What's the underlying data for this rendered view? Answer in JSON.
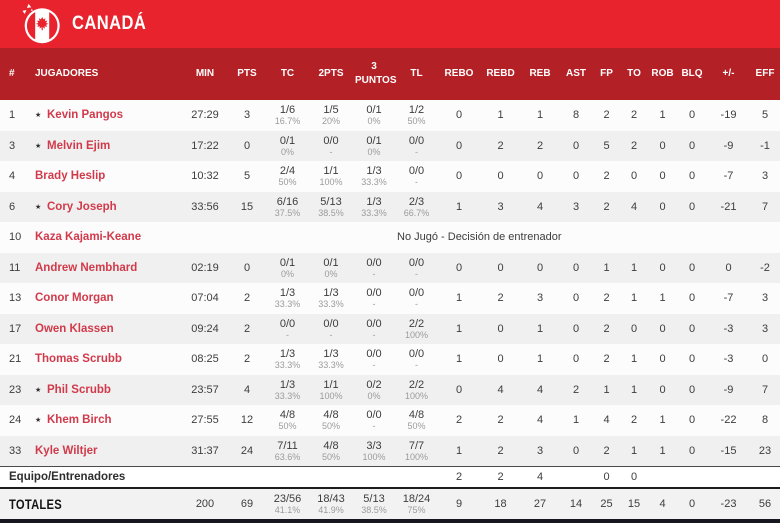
{
  "team": {
    "name": "CANADÁ"
  },
  "colors": {
    "topbar": "#e8232d",
    "header_bg": "#b32025",
    "name_red": "#d13a4a",
    "stripe": "#f0f0f1",
    "footer_dark": "#16161f"
  },
  "columns": [
    "#",
    "JUGADORES",
    "MIN",
    "PTS",
    "TC",
    "2PTS",
    "3 PUNTOS",
    "TL",
    "REBO",
    "REBD",
    "REB",
    "AST",
    "FP",
    "TO",
    "ROB",
    "BLQ",
    "+/-",
    "EFF"
  ],
  "players": [
    {
      "num": "1",
      "starter": true,
      "name": "Kevin Pangos",
      "min": "27:29",
      "pts": "3",
      "tc": {
        "m": "1/6",
        "pct": "16.7%"
      },
      "p2": {
        "m": "1/5",
        "pct": "20%"
      },
      "p3": {
        "m": "0/1",
        "pct": "0%"
      },
      "tl": {
        "m": "1/2",
        "pct": "50%"
      },
      "rebo": "0",
      "rebd": "1",
      "reb": "1",
      "ast": "8",
      "fp": "2",
      "to": "2",
      "rob": "1",
      "blq": "0",
      "pm": "-19",
      "eff": "5"
    },
    {
      "num": "3",
      "starter": true,
      "name": "Melvin Ejim",
      "min": "17:22",
      "pts": "0",
      "tc": {
        "m": "0/1",
        "pct": "0%"
      },
      "p2": {
        "m": "0/0",
        "pct": "-"
      },
      "p3": {
        "m": "0/1",
        "pct": "0%"
      },
      "tl": {
        "m": "0/0",
        "pct": "-"
      },
      "rebo": "0",
      "rebd": "2",
      "reb": "2",
      "ast": "0",
      "fp": "5",
      "to": "2",
      "rob": "0",
      "blq": "0",
      "pm": "-9",
      "eff": "-1"
    },
    {
      "num": "4",
      "starter": false,
      "name": "Brady Heslip",
      "min": "10:32",
      "pts": "5",
      "tc": {
        "m": "2/4",
        "pct": "50%"
      },
      "p2": {
        "m": "1/1",
        "pct": "100%"
      },
      "p3": {
        "m": "1/3",
        "pct": "33.3%"
      },
      "tl": {
        "m": "0/0",
        "pct": "-"
      },
      "rebo": "0",
      "rebd": "0",
      "reb": "0",
      "ast": "0",
      "fp": "2",
      "to": "0",
      "rob": "0",
      "blq": "0",
      "pm": "-7",
      "eff": "3"
    },
    {
      "num": "6",
      "starter": true,
      "name": "Cory Joseph",
      "min": "33:56",
      "pts": "15",
      "tc": {
        "m": "6/16",
        "pct": "37.5%"
      },
      "p2": {
        "m": "5/13",
        "pct": "38.5%"
      },
      "p3": {
        "m": "1/3",
        "pct": "33.3%"
      },
      "tl": {
        "m": "2/3",
        "pct": "66.7%"
      },
      "rebo": "1",
      "rebd": "3",
      "reb": "4",
      "ast": "3",
      "fp": "2",
      "to": "4",
      "rob": "0",
      "blq": "0",
      "pm": "-21",
      "eff": "7"
    },
    {
      "num": "10",
      "starter": false,
      "name": "Kaza Kajami-Keane",
      "dnp": "No Jugó - Decisión de entrenador"
    },
    {
      "num": "11",
      "starter": false,
      "name": "Andrew Nembhard",
      "min": "02:19",
      "pts": "0",
      "tc": {
        "m": "0/1",
        "pct": "0%"
      },
      "p2": {
        "m": "0/1",
        "pct": "0%"
      },
      "p3": {
        "m": "0/0",
        "pct": "-"
      },
      "tl": {
        "m": "0/0",
        "pct": "-"
      },
      "rebo": "0",
      "rebd": "0",
      "reb": "0",
      "ast": "0",
      "fp": "1",
      "to": "1",
      "rob": "0",
      "blq": "0",
      "pm": "0",
      "eff": "-2"
    },
    {
      "num": "13",
      "starter": false,
      "name": "Conor Morgan",
      "min": "07:04",
      "pts": "2",
      "tc": {
        "m": "1/3",
        "pct": "33.3%"
      },
      "p2": {
        "m": "1/3",
        "pct": "33.3%"
      },
      "p3": {
        "m": "0/0",
        "pct": "-"
      },
      "tl": {
        "m": "0/0",
        "pct": "-"
      },
      "rebo": "1",
      "rebd": "2",
      "reb": "3",
      "ast": "0",
      "fp": "2",
      "to": "1",
      "rob": "1",
      "blq": "0",
      "pm": "-7",
      "eff": "3"
    },
    {
      "num": "17",
      "starter": false,
      "name": "Owen Klassen",
      "min": "09:24",
      "pts": "2",
      "tc": {
        "m": "0/0",
        "pct": "-"
      },
      "p2": {
        "m": "0/0",
        "pct": "-"
      },
      "p3": {
        "m": "0/0",
        "pct": "-"
      },
      "tl": {
        "m": "2/2",
        "pct": "100%"
      },
      "rebo": "1",
      "rebd": "0",
      "reb": "1",
      "ast": "0",
      "fp": "2",
      "to": "0",
      "rob": "0",
      "blq": "0",
      "pm": "-3",
      "eff": "3"
    },
    {
      "num": "21",
      "starter": false,
      "name": "Thomas Scrubb",
      "min": "08:25",
      "pts": "2",
      "tc": {
        "m": "1/3",
        "pct": "33.3%"
      },
      "p2": {
        "m": "1/3",
        "pct": "33.3%"
      },
      "p3": {
        "m": "0/0",
        "pct": "-"
      },
      "tl": {
        "m": "0/0",
        "pct": "-"
      },
      "rebo": "1",
      "rebd": "0",
      "reb": "1",
      "ast": "0",
      "fp": "2",
      "to": "1",
      "rob": "0",
      "blq": "0",
      "pm": "-3",
      "eff": "0"
    },
    {
      "num": "23",
      "starter": true,
      "name": "Phil Scrubb",
      "min": "23:57",
      "pts": "4",
      "tc": {
        "m": "1/3",
        "pct": "33.3%"
      },
      "p2": {
        "m": "1/1",
        "pct": "100%"
      },
      "p3": {
        "m": "0/2",
        "pct": "0%"
      },
      "tl": {
        "m": "2/2",
        "pct": "100%"
      },
      "rebo": "0",
      "rebd": "4",
      "reb": "4",
      "ast": "2",
      "fp": "1",
      "to": "1",
      "rob": "0",
      "blq": "0",
      "pm": "-9",
      "eff": "7"
    },
    {
      "num": "24",
      "starter": true,
      "name": "Khem Birch",
      "min": "27:55",
      "pts": "12",
      "tc": {
        "m": "4/8",
        "pct": "50%"
      },
      "p2": {
        "m": "4/8",
        "pct": "50%"
      },
      "p3": {
        "m": "0/0",
        "pct": "-"
      },
      "tl": {
        "m": "4/8",
        "pct": "50%"
      },
      "rebo": "2",
      "rebd": "2",
      "reb": "4",
      "ast": "1",
      "fp": "4",
      "to": "2",
      "rob": "1",
      "blq": "0",
      "pm": "-22",
      "eff": "8"
    },
    {
      "num": "33",
      "starter": false,
      "name": "Kyle Wiltjer",
      "min": "31:37",
      "pts": "24",
      "tc": {
        "m": "7/11",
        "pct": "63.6%"
      },
      "p2": {
        "m": "4/8",
        "pct": "50%"
      },
      "p3": {
        "m": "3/3",
        "pct": "100%"
      },
      "tl": {
        "m": "7/7",
        "pct": "100%"
      },
      "rebo": "1",
      "rebd": "2",
      "reb": "3",
      "ast": "0",
      "fp": "2",
      "to": "1",
      "rob": "1",
      "blq": "0",
      "pm": "-15",
      "eff": "23"
    }
  ],
  "team_row": {
    "label": "Equipo/Entrenadores",
    "rebo": "2",
    "rebd": "2",
    "reb": "4",
    "fp": "0",
    "to": "0"
  },
  "totals": {
    "label": "TOTALES",
    "min": "200",
    "pts": "69",
    "tc": {
      "m": "23/56",
      "pct": "41.1%"
    },
    "p2": {
      "m": "18/43",
      "pct": "41.9%"
    },
    "p3": {
      "m": "5/13",
      "pct": "38.5%"
    },
    "tl": {
      "m": "18/24",
      "pct": "75%"
    },
    "rebo": "9",
    "rebd": "18",
    "reb": "27",
    "ast": "14",
    "fp": "25",
    "to": "15",
    "rob": "4",
    "blq": "0",
    "pm": "-23",
    "eff": "56"
  }
}
